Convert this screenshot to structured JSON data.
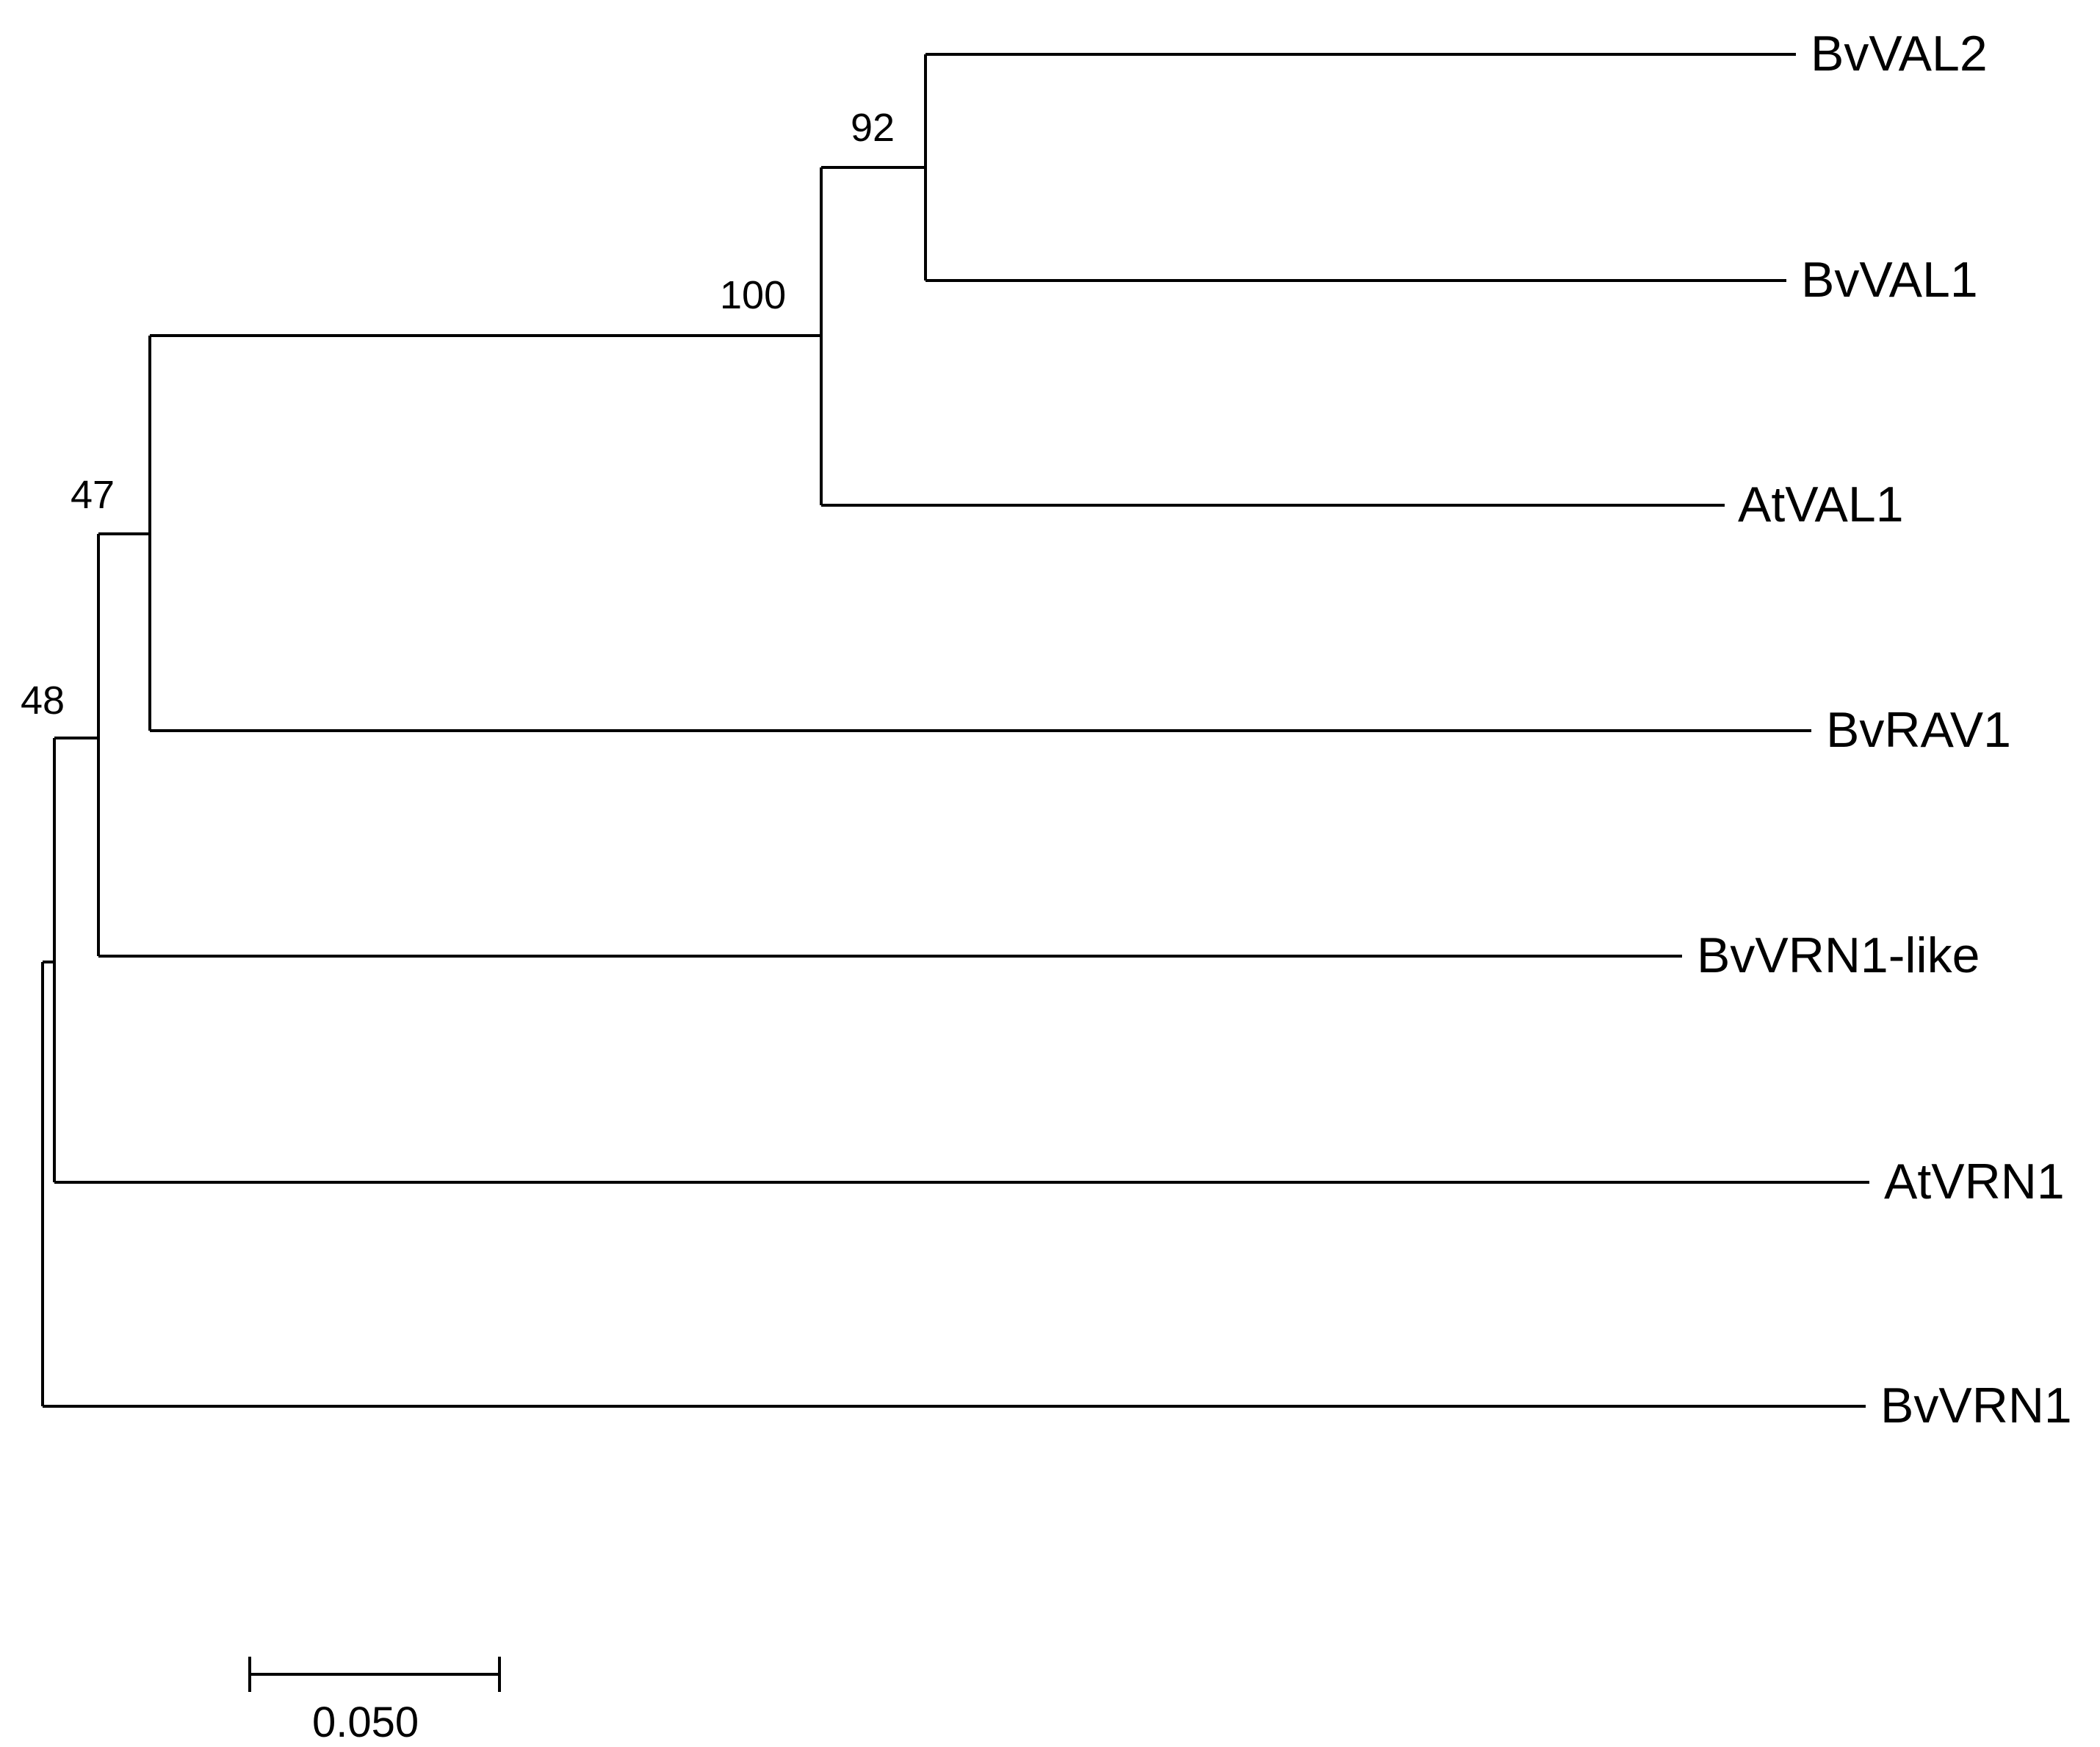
{
  "taxa": [
    "BvVAL2",
    "BvVAL1",
    "AtVAL1",
    "BvRAV1",
    "BvVRN1-like",
    "AtVRN1",
    "BvVRN1"
  ],
  "support_values": [
    "92",
    "100",
    "47",
    "48"
  ],
  "scale_bar": {
    "label": "0.050",
    "length": 0.05
  },
  "colors": {
    "lines": "#000000",
    "text": "#000000",
    "background": "#ffffff"
  }
}
